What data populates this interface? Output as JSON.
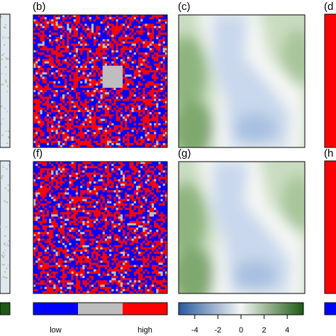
{
  "chart_data": {
    "type": "heatmap",
    "panel_labels": [
      "(b)",
      "(c)",
      "(d",
      "(f)",
      "(g)",
      "(h"
    ],
    "legend_labels": [
      "low",
      "high"
    ],
    "category_colors": [
      "#0000ff",
      "#bebebe",
      "#ff0000"
    ],
    "colormap": [
      "#2a5a9c",
      "#f4f6f4",
      "#1f5a14"
    ],
    "xlim": [
      -5.4,
      5.4
    ],
    "xticks": [
      -4,
      -2,
      0,
      2,
      4
    ]
  }
}
